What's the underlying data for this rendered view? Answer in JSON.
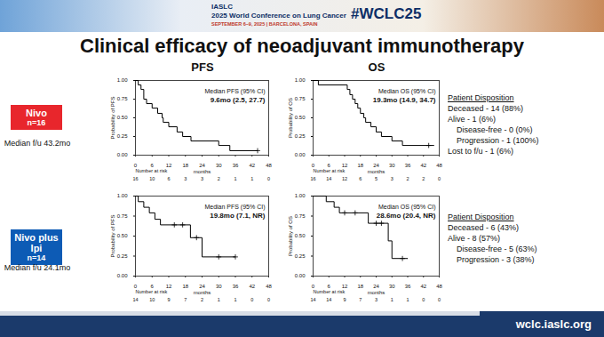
{
  "header": {
    "org": "IASLC",
    "conference": "2025 World Conference on Lung Cancer",
    "dates": "SEPTEMBER 6–9, 2025 | BARCELONA, SPAIN",
    "hashtag": "#WCLC25"
  },
  "title": "Clinical efficacy of neoadjuvant immunotherapy",
  "column_titles": [
    "PFS",
    "OS"
  ],
  "arms": [
    {
      "name": "Nivo",
      "n": "n=16",
      "color": "#e8262c",
      "followup": "Median f/u 43.2mo",
      "disposition": {
        "title": "Patient Disposition",
        "items": [
          {
            "text": "Deceased - 14 (88%)"
          },
          {
            "text": "Alive - 1 (6%)",
            "sub": [
              "Disease-free - 0 (0%)",
              "Progression - 1 (100%)"
            ]
          },
          {
            "text": "Lost to f/u - 1 (6%)"
          }
        ]
      }
    },
    {
      "name": "Nivo plus Ipi",
      "n": "n=14",
      "color": "#0d5bb5",
      "followup": "Median f/u 24.1mo",
      "disposition": {
        "title": "Patient Disposition",
        "items": [
          {
            "text": "Deceased - 6 (43%)"
          },
          {
            "text": "Alive - 8 (57%)",
            "sub": [
              "Disease-free - 5 (63%)",
              "Progression - 3 (38%)"
            ]
          }
        ]
      }
    }
  ],
  "chart_data": [
    {
      "type": "step",
      "xlabel": "months",
      "ylabel": "Probability of PFS",
      "color": "#000000",
      "marker": "plus",
      "x": [
        0,
        1,
        2,
        3,
        4,
        6,
        8,
        9.6,
        10,
        12,
        15,
        17,
        20,
        30,
        34,
        44
      ],
      "values": [
        1,
        0.94,
        0.88,
        0.75,
        0.69,
        0.63,
        0.56,
        0.5,
        0.44,
        0.38,
        0.31,
        0.25,
        0.19,
        0.13,
        0.06,
        0.06
      ],
      "censored": {
        "x": [
          44
        ],
        "values": [
          0.06
        ]
      },
      "xlim": [
        0,
        48
      ],
      "xticks": [
        0,
        6,
        12,
        18,
        24,
        30,
        36,
        42,
        48
      ],
      "ylim": [
        0,
        1
      ],
      "yticks": [
        {
          "value": 0,
          "label": "0.00"
        },
        {
          "value": 0.25,
          "label": "0.25"
        },
        {
          "value": 0.5,
          "label": "0.50"
        },
        {
          "value": 0.75,
          "label": "0.75"
        },
        {
          "value": 1,
          "label": "1.00"
        }
      ],
      "annotations": [
        "Median PFS (95% CI)",
        "9.6mo (2.5, 27.7)"
      ],
      "at_risk": {
        "label": "Number at risk",
        "values": [
          16,
          10,
          6,
          3,
          3,
          2,
          1,
          1,
          0
        ]
      }
    },
    {
      "type": "step",
      "xlabel": "months",
      "ylabel": "Probability of OS",
      "color": "#000000",
      "marker": "plus",
      "x": [
        0,
        2,
        13,
        14,
        15,
        16,
        17,
        18,
        19.3,
        20,
        22,
        24,
        26,
        30,
        34,
        46
      ],
      "values": [
        1,
        0.94,
        0.88,
        0.81,
        0.75,
        0.69,
        0.63,
        0.56,
        0.5,
        0.44,
        0.38,
        0.31,
        0.25,
        0.19,
        0.13,
        0.13
      ],
      "censored": {
        "x": [
          44
        ],
        "values": [
          0.13
        ]
      },
      "xlim": [
        0,
        48
      ],
      "xticks": [
        0,
        6,
        12,
        18,
        24,
        30,
        36,
        42,
        48
      ],
      "ylim": [
        0,
        1
      ],
      "yticks": [
        {
          "value": 0,
          "label": "0.00"
        },
        {
          "value": 0.25,
          "label": "0.25"
        },
        {
          "value": 0.5,
          "label": "0.50"
        },
        {
          "value": 0.75,
          "label": "0.75"
        },
        {
          "value": 1,
          "label": "1.00"
        }
      ],
      "annotations": [
        "Median OS (95% CI)",
        "19.3mo (14.9, 34.7)"
      ],
      "at_risk": {
        "label": "Number at risk",
        "values": [
          16,
          14,
          12,
          6,
          5,
          3,
          2,
          2,
          0
        ]
      }
    },
    {
      "type": "step",
      "xlabel": "months",
      "ylabel": "Probability of PFS",
      "color": "#000000",
      "marker": "plus",
      "x": [
        0,
        1,
        3,
        5,
        7,
        9,
        19.8,
        24,
        36
      ],
      "values": [
        1,
        0.93,
        0.86,
        0.79,
        0.71,
        0.64,
        0.48,
        0.24,
        0.24
      ],
      "censored": {
        "x": [
          14,
          17,
          22,
          30,
          36
        ],
        "values": [
          0.64,
          0.64,
          0.48,
          0.24,
          0.24
        ]
      },
      "xlim": [
        0,
        48
      ],
      "xticks": [
        0,
        6,
        12,
        18,
        24,
        30,
        36,
        42,
        48
      ],
      "ylim": [
        0,
        1
      ],
      "yticks": [
        {
          "value": 0,
          "label": "0.00"
        },
        {
          "value": 0.25,
          "label": "0.25"
        },
        {
          "value": 0.5,
          "label": "0.50"
        },
        {
          "value": 0.75,
          "label": "0.75"
        },
        {
          "value": 1,
          "label": "1.00"
        }
      ],
      "annotations": [
        "Median PFS (95% CI)",
        "19.8mo (7.1, NR)"
      ],
      "at_risk": {
        "label": "Number at risk",
        "values": [
          14,
          10,
          9,
          7,
          2,
          1,
          1,
          0,
          0
        ]
      }
    },
    {
      "type": "step",
      "xlabel": "months",
      "ylabel": "Probability of OS",
      "color": "#000000",
      "marker": "plus",
      "x": [
        0,
        5,
        8,
        10,
        21,
        28.6,
        30,
        36
      ],
      "values": [
        1,
        0.93,
        0.86,
        0.79,
        0.66,
        0.44,
        0.22,
        0.22
      ],
      "censored": {
        "x": [
          12,
          16,
          24,
          26,
          34
        ],
        "values": [
          0.79,
          0.79,
          0.66,
          0.66,
          0.22
        ]
      },
      "xlim": [
        0,
        48
      ],
      "xticks": [
        0,
        6,
        12,
        18,
        24,
        30,
        36,
        42,
        48
      ],
      "ylim": [
        0,
        1
      ],
      "yticks": [
        {
          "value": 0,
          "label": "0.00"
        },
        {
          "value": 0.25,
          "label": "0.25"
        },
        {
          "value": 0.5,
          "label": "0.50"
        },
        {
          "value": 0.75,
          "label": "0.75"
        },
        {
          "value": 1,
          "label": "1.00"
        }
      ],
      "annotations": [
        "Median OS (95% CI)",
        "28.6mo (20.4, NR)"
      ],
      "at_risk": {
        "label": "Number at risk",
        "values": [
          14,
          14,
          9,
          7,
          3,
          1,
          1,
          0,
          0
        ]
      }
    }
  ],
  "footer": "wclc.iaslc.org"
}
